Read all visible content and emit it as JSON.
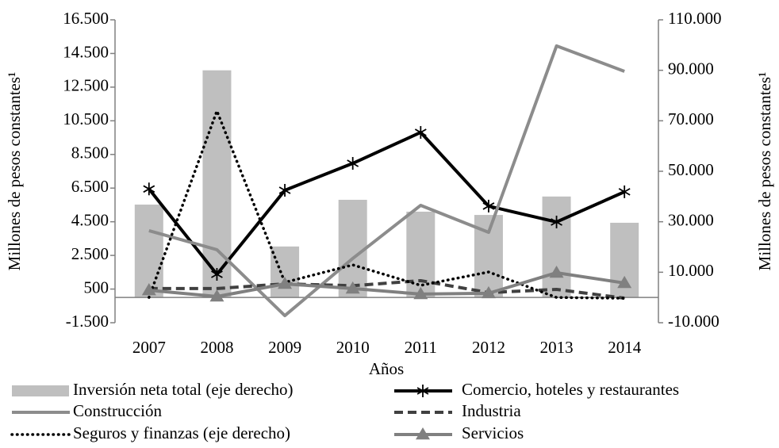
{
  "chart_data": {
    "type": "combo",
    "x_label": "Años",
    "y_label": "Millones de pesos constantes¹",
    "y2_label": "Millones de pesos constantes¹",
    "categories": [
      "2007",
      "2008",
      "2009",
      "2010",
      "2011",
      "2012",
      "2013",
      "2014"
    ],
    "ylim": [
      -1500,
      16500
    ],
    "yticks": [
      {
        "value": -1500,
        "label": "-1.500"
      },
      500,
      {
        "value": 2500,
        "label": "2.500"
      },
      {
        "value": 4500,
        "label": "4.500"
      },
      {
        "value": 6500,
        "label": "6.500"
      },
      {
        "value": 8500,
        "label": "8.500"
      },
      {
        "value": 10500,
        "label": "10.500"
      },
      {
        "value": 12500,
        "label": "12.500"
      },
      {
        "value": 14500,
        "label": "14.500"
      },
      {
        "value": 16500,
        "label": "16.500"
      }
    ],
    "y2lim": [
      -10000,
      110000
    ],
    "y2ticks": [
      {
        "value": -10000,
        "label": "-10.000"
      },
      {
        "value": 10000,
        "label": "10.000"
      },
      {
        "value": 30000,
        "label": "30.000"
      },
      {
        "value": 50000,
        "label": "50.000"
      },
      {
        "value": 70000,
        "label": "70.000"
      },
      {
        "value": 90000,
        "label": "90.000"
      },
      {
        "value": 110000,
        "label": "110.000"
      }
    ],
    "grid": false,
    "series": [
      {
        "name": "Inversión neta total (eje derecho)",
        "type": "bar",
        "axis": "y2",
        "color": "#bfbfbf",
        "values": [
          36800,
          90000,
          20200,
          38700,
          34000,
          32700,
          40000,
          29600
        ]
      },
      {
        "name": "Comercio, hoteles y restaurantes",
        "type": "line",
        "color": "#000000",
        "marker": "asterisk",
        "values": [
          6450,
          1375,
          6370,
          7970,
          9810,
          5430,
          4485,
          6280
        ]
      },
      {
        "name": "Construcción",
        "type": "line",
        "color": "#8c8c8c",
        "values": [
          3970,
          2840,
          -1080,
          2320,
          5475,
          3870,
          14950,
          13440
        ]
      },
      {
        "name": "Industria",
        "type": "line",
        "color": "#404040",
        "dash": "dashed",
        "values": [
          530,
          530,
          810,
          700,
          1000,
          290,
          480,
          -40
        ]
      },
      {
        "name": "Seguros y finanzas (eje derecho)",
        "type": "line",
        "axis": "y2",
        "color": "#000000",
        "dash": "dotted",
        "values": [
          0,
          73900,
          6000,
          12900,
          4800,
          10100,
          0,
          -300
        ]
      },
      {
        "name": "Servicios",
        "type": "line",
        "color": "#808080",
        "marker": "triangle",
        "values": [
          430,
          55,
          810,
          530,
          200,
          250,
          1470,
          860
        ]
      }
    ]
  }
}
